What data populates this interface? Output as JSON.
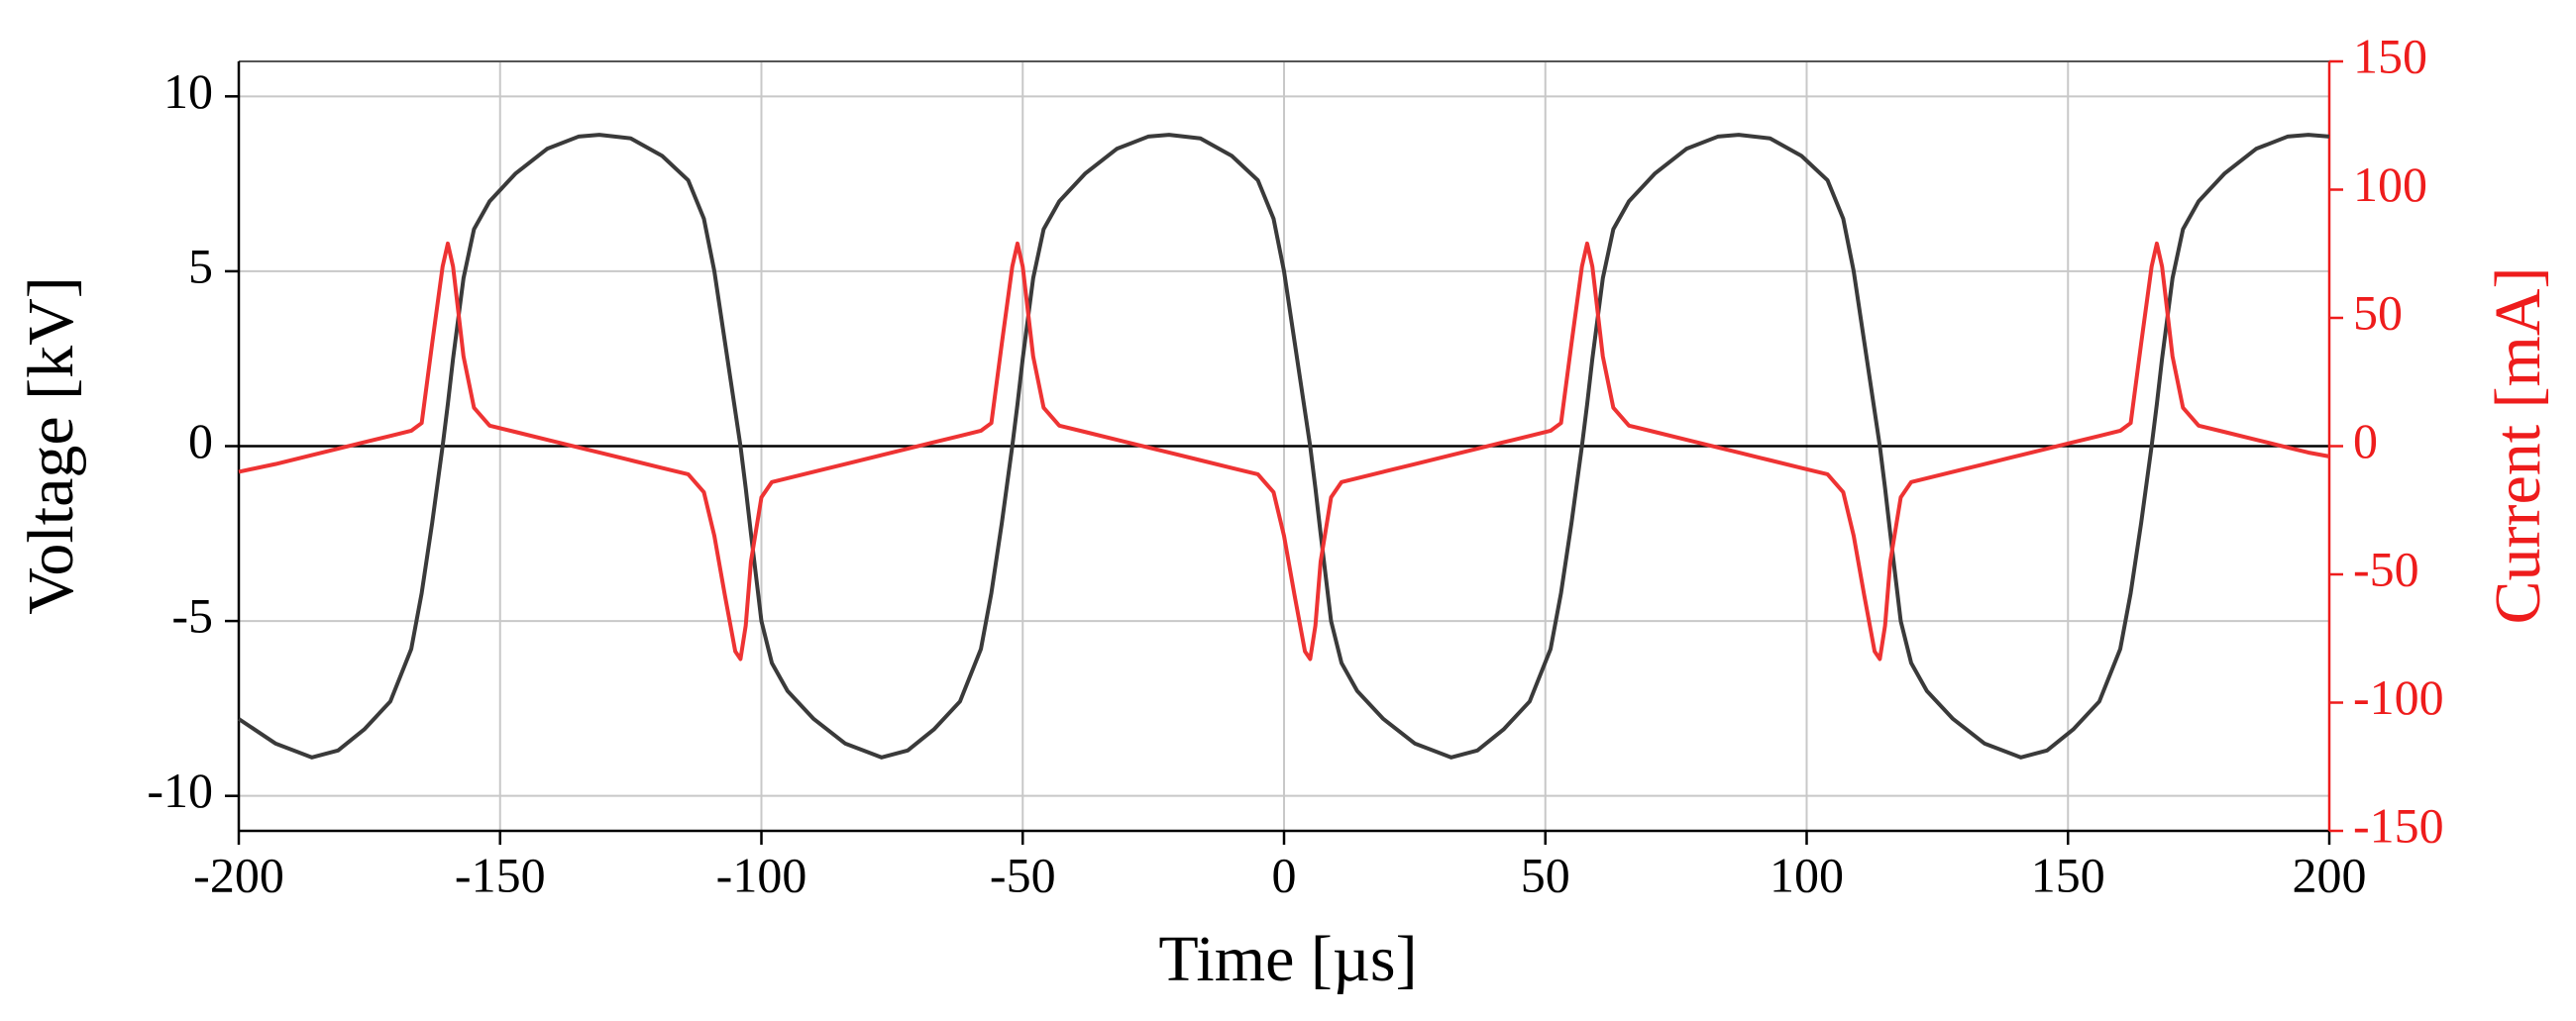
{
  "chart_data": {
    "type": "line",
    "x_label": "Time [µs]",
    "y_label": "Voltage [kV]",
    "y2_label": "Current [mA]",
    "xlim": [
      -200,
      200
    ],
    "xticks": [
      -200,
      -150,
      -100,
      -50,
      0,
      50,
      100,
      150,
      200
    ],
    "ylim": [
      -11,
      11
    ],
    "yticks": [
      -10,
      -5,
      0,
      5,
      10
    ],
    "y2lim": [
      -150,
      150
    ],
    "y2ticks": [
      -150,
      -100,
      -50,
      0,
      50,
      100,
      150
    ],
    "grid": true,
    "y2_color": "#ee1c1c",
    "x": [
      -200,
      -193,
      -186,
      -181,
      -176,
      -171,
      -167,
      -165,
      -163,
      -161,
      -160,
      -159,
      -157,
      -155,
      -152,
      -147,
      -141,
      -135,
      -131,
      -125,
      -119,
      -114,
      -111,
      -109,
      -107,
      -105,
      -104,
      -103,
      -102,
      -100,
      -98,
      -95,
      -90,
      -84,
      -77,
      -72,
      -67,
      -62,
      -58,
      -56,
      -54,
      -52,
      -51,
      -50,
      -48,
      -46,
      -43,
      -38,
      -32,
      -26,
      -22,
      -16,
      -10,
      -5,
      -2,
      0,
      2,
      4,
      5,
      6,
      7,
      9,
      11,
      14,
      19,
      25,
      32,
      37,
      42,
      47,
      51,
      53,
      55,
      57,
      58,
      59,
      61,
      63,
      66,
      71,
      77,
      83,
      87,
      93,
      99,
      104,
      107,
      109,
      111,
      113,
      114,
      115,
      116,
      118,
      120,
      123,
      128,
      134,
      141,
      146,
      151,
      156,
      160,
      162,
      164,
      166,
      167,
      168,
      170,
      172,
      175,
      180,
      186,
      192,
      196,
      200
    ],
    "series": [
      {
        "color": "#3a3a3a",
        "values": [
          -7.8,
          -8.5,
          -8.9,
          -8.7,
          -8.1,
          -7.3,
          -5.8,
          -4.2,
          -2.2,
          0,
          1.2,
          2.5,
          4.8,
          6.2,
          7.0,
          7.8,
          8.5,
          8.85,
          8.9,
          8.8,
          8.3,
          7.6,
          6.5,
          5.0,
          3.0,
          1.0,
          0,
          -1.2,
          -2.5,
          -5.0,
          -6.2,
          -7.0,
          -7.8,
          -8.5,
          -8.9,
          -8.7,
          -8.1,
          -7.3,
          -5.8,
          -4.2,
          -2.2,
          0,
          1.2,
          2.5,
          4.8,
          6.2,
          7.0,
          7.8,
          8.5,
          8.85,
          8.9,
          8.8,
          8.3,
          7.6,
          6.5,
          5.0,
          3.0,
          1.0,
          0,
          -1.2,
          -2.5,
          -5.0,
          -6.2,
          -7.0,
          -7.8,
          -8.5,
          -8.9,
          -8.7,
          -8.1,
          -7.3,
          -5.8,
          -4.2,
          -2.2,
          0,
          1.2,
          2.5,
          4.8,
          6.2,
          7.0,
          7.8,
          8.5,
          8.85,
          8.9,
          8.8,
          8.3,
          7.6,
          6.5,
          5.0,
          3.0,
          1.0,
          0,
          -1.2,
          -2.5,
          -5.0,
          -6.2,
          -7.0,
          -7.8,
          -8.5,
          -8.9,
          -8.7,
          -8.1,
          -7.3,
          -5.8,
          -4.2,
          -2.2,
          0,
          1.2,
          2.5,
          4.8,
          6.2,
          7.0,
          7.8,
          8.5,
          8.85,
          8.9,
          8.85
        ]
      },
      {
        "color": "#ee3333",
        "axis": "y2",
        "values": [
          -10,
          -7,
          -3.5,
          -1,
          1.5,
          4,
          6,
          9,
          40,
          70,
          79,
          70,
          35,
          15,
          8,
          5.5,
          2.5,
          -0.5,
          -2.5,
          -5.5,
          -8.5,
          -11,
          -18,
          -35,
          -58,
          -80,
          -83,
          -70,
          -45,
          -20,
          -14,
          -12.5,
          -10,
          -7,
          -3.5,
          -1,
          1.5,
          4,
          6,
          9,
          40,
          70,
          79,
          70,
          35,
          15,
          8,
          5.5,
          2.5,
          -0.5,
          -2.5,
          -5.5,
          -8.5,
          -11,
          -18,
          -35,
          -58,
          -80,
          -83,
          -70,
          -45,
          -20,
          -14,
          -12.5,
          -10,
          -7,
          -3.5,
          -1,
          1.5,
          4,
          6,
          9,
          40,
          70,
          79,
          70,
          35,
          15,
          8,
          5.5,
          2.5,
          -0.5,
          -2.5,
          -5.5,
          -8.5,
          -11,
          -18,
          -35,
          -58,
          -80,
          -83,
          -70,
          -45,
          -20,
          -14,
          -12.5,
          -10,
          -7,
          -3.5,
          -1,
          1.5,
          4,
          6,
          9,
          40,
          70,
          79,
          70,
          35,
          15,
          8,
          5.5,
          2.5,
          -0.5,
          -2.5,
          -4
        ]
      }
    ]
  }
}
